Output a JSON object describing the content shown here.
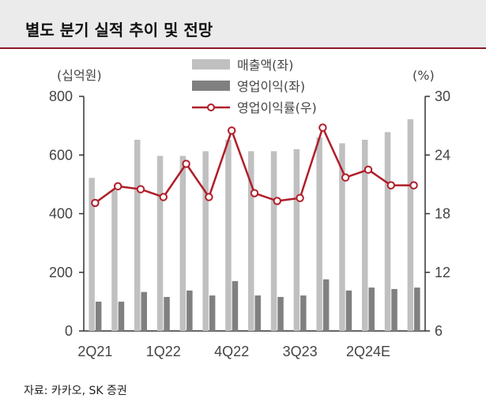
{
  "title": "별도 분기 실적 추이 및 전망",
  "source": "자료: 카카오, SK 증권",
  "colors": {
    "sales": "#c0c0c0",
    "op": "#808080",
    "margin": "#b01e2a",
    "accent": "#8c1a24"
  },
  "chart_data": {
    "type": "bar+line",
    "left_unit": "(십억원)",
    "right_unit": "(%)",
    "ylim_left": [
      0,
      800
    ],
    "ylim_right": [
      6,
      30
    ],
    "left_ticks": [
      "0",
      "200",
      "400",
      "600",
      "800"
    ],
    "right_ticks": [
      "6",
      "12",
      "18",
      "24",
      "30"
    ],
    "categories": [
      "2Q21",
      "3Q21",
      "4Q21",
      "1Q22",
      "2Q22",
      "3Q22",
      "4Q22",
      "1Q23",
      "2Q23",
      "3Q23",
      "4Q23",
      "1Q24",
      "2Q24E",
      "3Q24E",
      "4Q24E"
    ],
    "x_tick_labels": [
      "2Q21",
      "",
      "",
      "1Q22",
      "",
      "",
      "4Q22",
      "",
      "",
      "3Q23",
      "",
      "",
      "2Q24E",
      "",
      ""
    ],
    "series": [
      {
        "name": "매출액(좌)",
        "type": "bar",
        "axis": "left",
        "values": [
          522,
          480,
          652,
          597,
          597,
          613,
          652,
          613,
          613,
          620,
          660,
          640,
          652,
          678,
          722
        ]
      },
      {
        "name": "영업이익(좌)",
        "type": "bar",
        "axis": "left",
        "values": [
          100,
          100,
          133,
          116,
          138,
          121,
          170,
          121,
          116,
          121,
          176,
          138,
          148,
          143,
          148
        ]
      },
      {
        "name": "영업이익률(우)",
        "type": "line",
        "axis": "right",
        "values": [
          19.1,
          20.8,
          20.5,
          19.7,
          23.1,
          19.7,
          26.5,
          20.1,
          19.3,
          19.6,
          26.8,
          21.7,
          22.5,
          20.9,
          20.9
        ]
      }
    ]
  }
}
